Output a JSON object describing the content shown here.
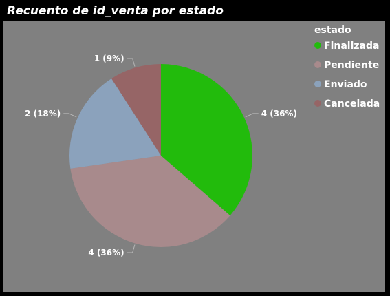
{
  "chart_data": {
    "type": "pie",
    "title": "Recuento de id_venta por estado",
    "legend_title": "estado",
    "legend_position": "top-right",
    "categories": [
      "Finalizada",
      "Pendiente",
      "Enviado",
      "Cancelada"
    ],
    "values": [
      4,
      4,
      2,
      1
    ],
    "data_labels": [
      "4 (36%)",
      "4 (36%)",
      "2 (18%)",
      "1 (9%)"
    ],
    "colors": [
      "#22bb0c",
      "#a88a8c",
      "#8ba2bc",
      "#966566"
    ]
  }
}
